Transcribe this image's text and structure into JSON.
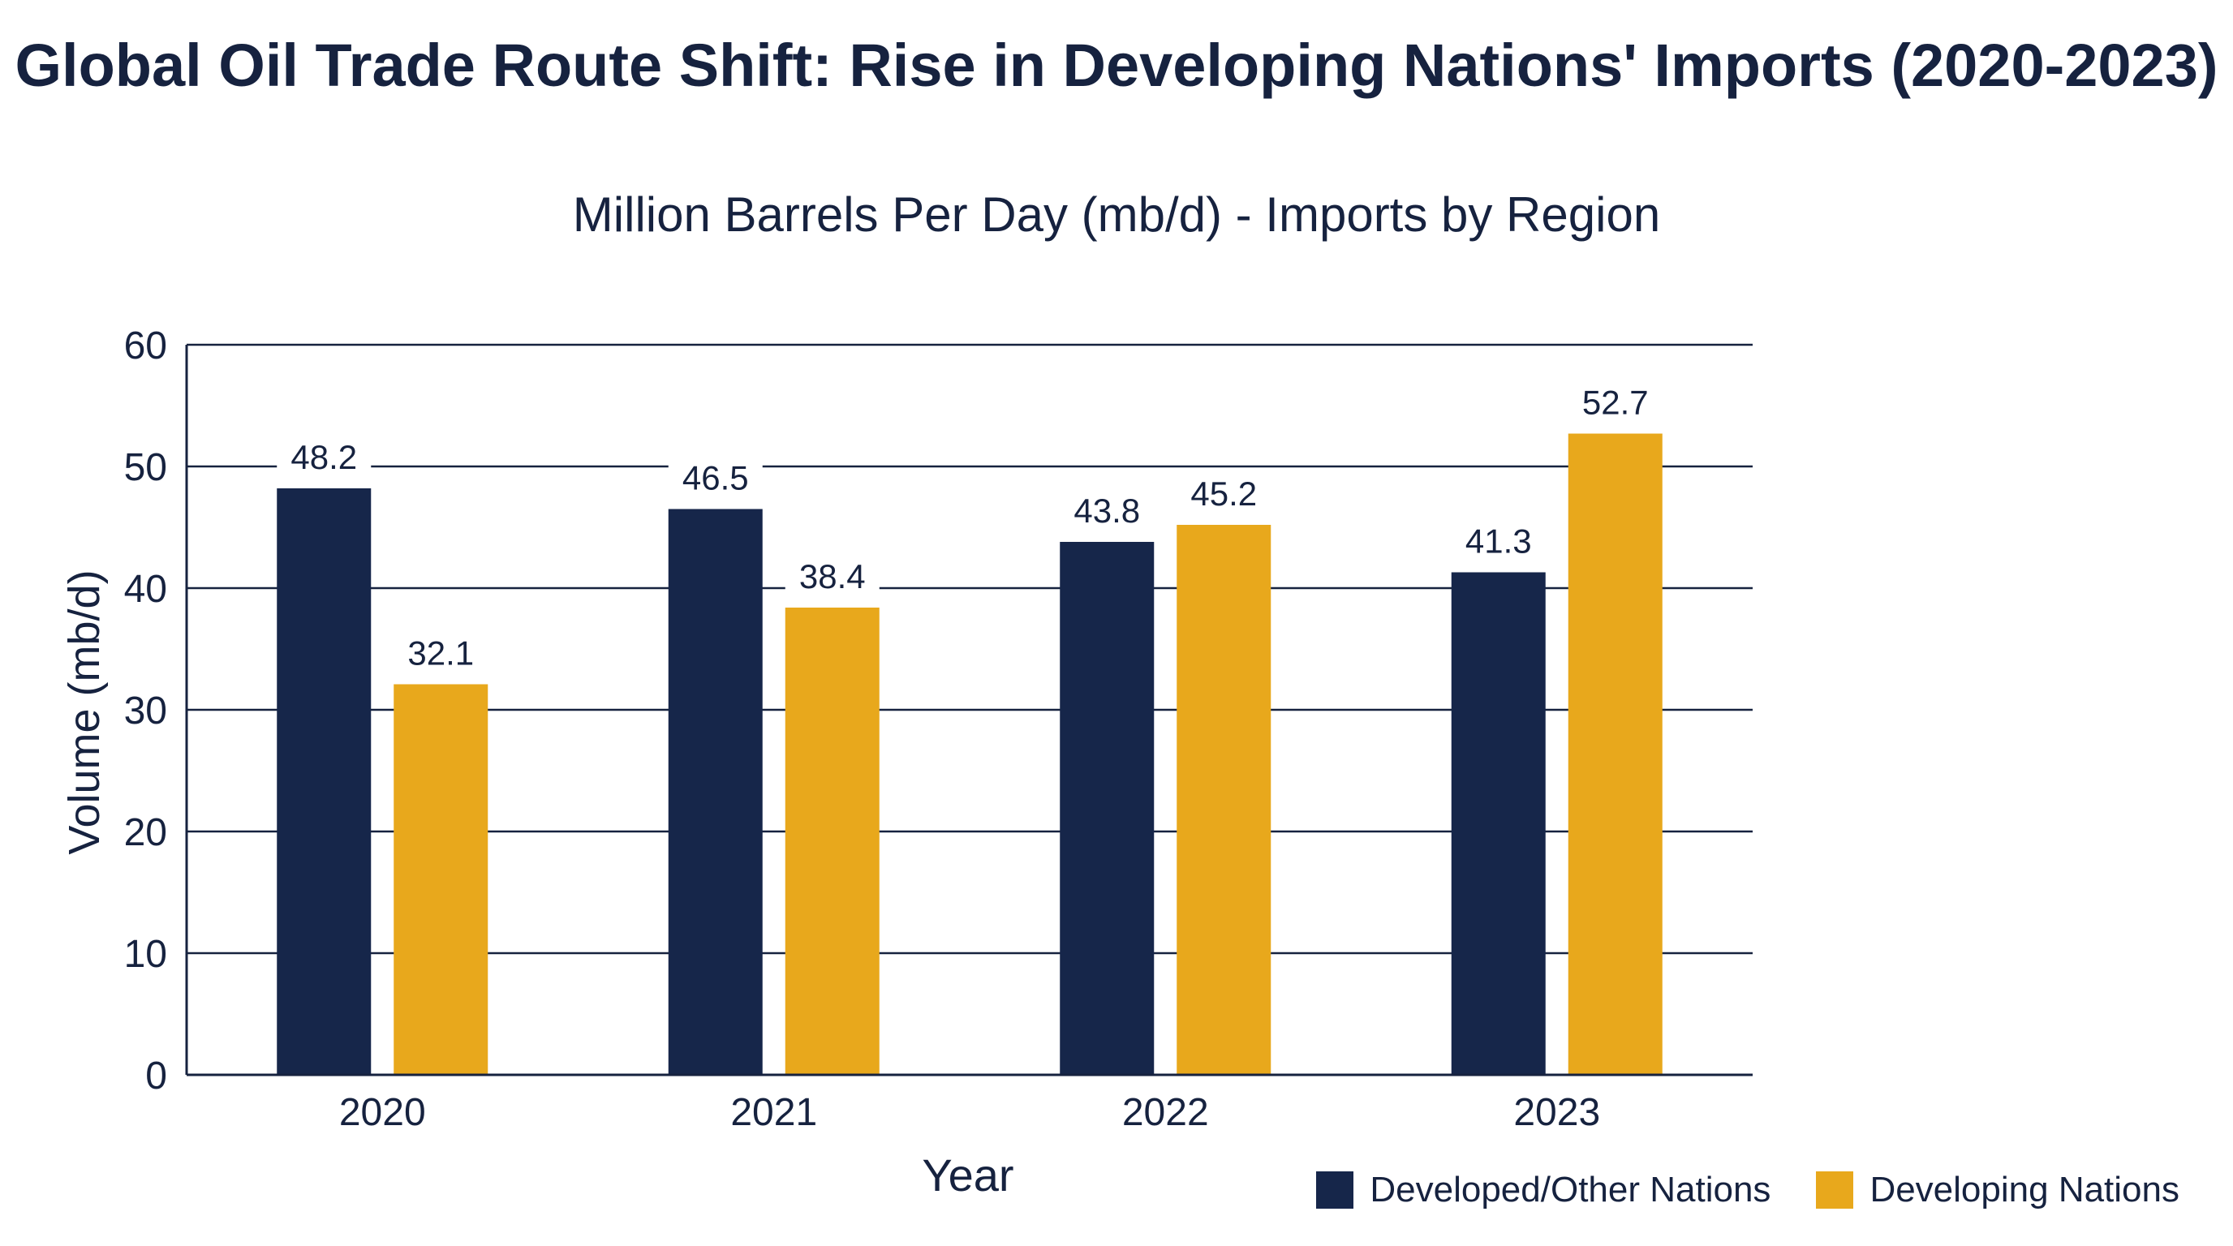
{
  "chart_data": {
    "type": "bar",
    "title": "Global Oil Trade Route Shift: Rise in Developing Nations' Imports (2020-2023)",
    "subtitle": "Million Barrels Per Day (mb/d) - Imports by Region",
    "xlabel": "Year",
    "ylabel": "Volume (mb/d)",
    "ylim": [
      0,
      60
    ],
    "yticks": [
      0,
      10,
      20,
      30,
      40,
      50,
      60
    ],
    "categories": [
      "2020",
      "2021",
      "2022",
      "2023"
    ],
    "series": [
      {
        "name": "Developed/Other Nations",
        "color": "#16264a",
        "values": [
          48.2,
          46.5,
          43.8,
          41.3
        ]
      },
      {
        "name": "Developing Nations",
        "color": "#e8a81c",
        "values": [
          32.1,
          38.4,
          45.2,
          52.7
        ]
      }
    ],
    "grid": true,
    "legend_position": "bottom-right"
  }
}
